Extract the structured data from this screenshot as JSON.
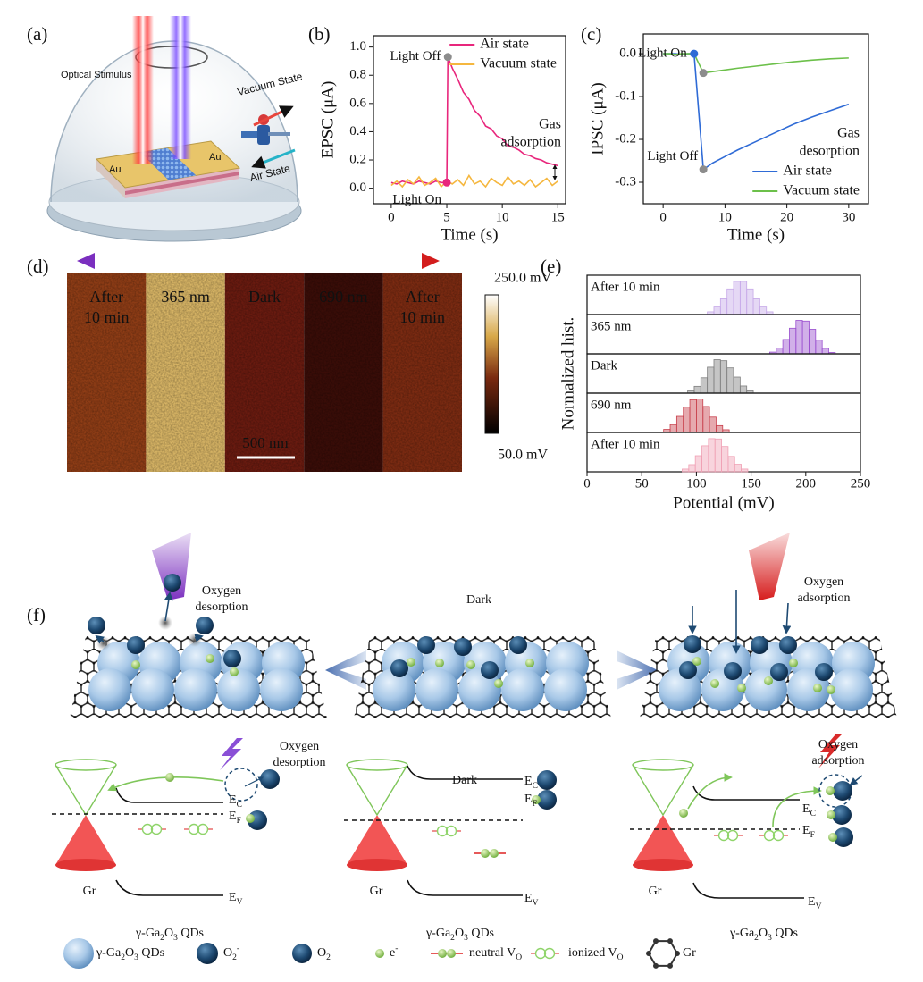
{
  "figure": {
    "panel_labels": [
      "(a)",
      "(b)",
      "(c)",
      "(d)",
      "(e)",
      "(f)"
    ],
    "a": {
      "optical_stimulus": "Optical Stimulus",
      "vacuum_state": "Vacuum State",
      "air_state": "Air State",
      "electrodes": [
        "Au",
        "Au"
      ]
    },
    "d": {
      "stripes": [
        [
          "After",
          "10 min"
        ],
        [
          "365 nm"
        ],
        [
          "Dark"
        ],
        [
          "690 nm"
        ],
        [
          "After",
          "10 min"
        ]
      ],
      "scale_bar": "500 nm",
      "colorbar_max": "250.0 mV",
      "colorbar_min": "50.0 mV"
    },
    "f": {
      "top": {
        "left": [
          "Oxygen",
          "desorption"
        ],
        "center": "Dark",
        "right": [
          "Oxygen",
          "adsorption"
        ]
      },
      "bands": [
        {
          "note": [
            "Oxygen",
            "desorption"
          ],
          "ec": [
            "E",
            {
              "sub": "C"
            }
          ],
          "ef": [
            "E",
            {
              "sub": "F"
            }
          ],
          "ev": [
            "E",
            {
              "sub": "V"
            }
          ],
          "gr": "Gr",
          "qds": [
            "γ-Ga",
            {
              "sub": "2"
            },
            "O",
            {
              "sub": "3"
            },
            " QDs"
          ]
        },
        {
          "note": [
            "Dark"
          ],
          "ec": [
            "E",
            {
              "sub": "C"
            }
          ],
          "ef": [
            "E",
            {
              "sub": "F"
            }
          ],
          "ev": [
            "E",
            {
              "sub": "V"
            }
          ],
          "gr": "Gr",
          "qds": [
            "γ-Ga",
            {
              "sub": "2"
            },
            "O",
            {
              "sub": "3"
            },
            " QDs"
          ]
        },
        {
          "note": [
            "Oxygen",
            "adsorption"
          ],
          "ec": [
            "E",
            {
              "sub": "C"
            }
          ],
          "ef": [
            "E",
            {
              "sub": "F"
            }
          ],
          "ev": [
            "E",
            {
              "sub": "V"
            }
          ],
          "gr": "Gr",
          "qds": [
            "γ-Ga",
            {
              "sub": "2"
            },
            "O",
            {
              "sub": "3"
            },
            " QDs"
          ]
        }
      ],
      "legend": [
        [
          "γ-Ga",
          {
            "sub": "2"
          },
          "O",
          {
            "sub": "3"
          },
          " QDs"
        ],
        [
          "O",
          {
            "sub": "2"
          },
          {
            "sup": "-"
          }
        ],
        [
          "O",
          {
            "sub": "2"
          }
        ],
        [
          "e",
          {
            "sup": "-"
          }
        ],
        [
          "neutral V",
          {
            "sub": "O"
          }
        ],
        [
          "ionized V",
          {
            "sub": "O"
          }
        ],
        [
          "Gr"
        ]
      ]
    }
  },
  "chart_data": [
    {
      "type": "line",
      "xlabel": "Time (s)",
      "ylabel": "EPSC (μA)",
      "xlim": [
        -1.6,
        15.7
      ],
      "ylim": [
        -0.11,
        1.08
      ],
      "xticks": [
        0,
        5,
        10,
        15
      ],
      "yticks": [
        {
          "value": 0,
          "label": "0.0"
        },
        0.2,
        0.4,
        0.6,
        0.8,
        {
          "value": 1,
          "label": "1.0"
        }
      ],
      "legend": "upper right",
      "series": [
        {
          "name": "Air state",
          "color": "#e8267c",
          "x": [
            0,
            0.5,
            1,
            1.5,
            2,
            2.5,
            3,
            3.5,
            4,
            4.5,
            5,
            5.1,
            5.5,
            6,
            6.5,
            7,
            7.5,
            8,
            8.5,
            9,
            9.5,
            10,
            10.5,
            11,
            11.5,
            12,
            12.5,
            13,
            13.5,
            14,
            14.5,
            15
          ],
          "values": [
            0.04,
            0.03,
            0.05,
            0.04,
            0.03,
            0.05,
            0.04,
            0.03,
            0.05,
            0.04,
            0.04,
            0.93,
            0.85,
            0.77,
            0.68,
            0.63,
            0.55,
            0.51,
            0.44,
            0.42,
            0.37,
            0.35,
            0.3,
            0.29,
            0.27,
            0.24,
            0.23,
            0.21,
            0.2,
            0.18,
            0.17,
            0.16
          ]
        },
        {
          "name": "Vacuum state",
          "color": "#f5b73f",
          "x": [
            0,
            0.5,
            1,
            1.5,
            2,
            2.5,
            3,
            3.5,
            4,
            4.5,
            5,
            5.5,
            6,
            6.5,
            7,
            7.5,
            8,
            8.5,
            9,
            9.5,
            10,
            10.5,
            11,
            11.5,
            12,
            12.5,
            13,
            13.5,
            14,
            14.5,
            15
          ],
          "values": [
            0.02,
            0.05,
            0.01,
            0.06,
            0.03,
            0.08,
            0.02,
            0.04,
            0.07,
            0.01,
            0.05,
            0.03,
            0.06,
            0.02,
            0.09,
            0.03,
            0.05,
            0.01,
            0.07,
            0.04,
            0.02,
            0.08,
            0.03,
            0.05,
            0.02,
            0.06,
            0.01,
            0.04,
            0.07,
            0.02,
            0.05
          ]
        }
      ],
      "markers": [
        {
          "label": "Light Off",
          "x": 5.1,
          "y": 0.93,
          "color": "#8c8c8c"
        },
        {
          "label": "Light On",
          "x": 5,
          "y": 0.04,
          "color": "#e8267c"
        }
      ],
      "annotation": {
        "lines": [
          "Gas",
          "adsorption"
        ],
        "color": "#e8267c"
      }
    },
    {
      "type": "line",
      "xlabel": "Time (s)",
      "ylabel": "IPSC (μA)",
      "xlim": [
        -3.2,
        33.2
      ],
      "ylim": [
        -0.35,
        0.046
      ],
      "xticks": [
        0,
        10,
        20,
        30
      ],
      "yticks": [
        {
          "value": 0,
          "label": "0.0"
        },
        -0.1,
        -0.2,
        -0.3
      ],
      "legend": "lower right",
      "series": [
        {
          "name": "Air state",
          "color": "#2f6bd6",
          "x": [
            0,
            1,
            2,
            3,
            4,
            5,
            6.5,
            8,
            10,
            12,
            15,
            18,
            21,
            24,
            27,
            30
          ],
          "values": [
            0,
            0,
            0,
            -0.002,
            0,
            0,
            -0.27,
            -0.255,
            -0.24,
            -0.225,
            -0.205,
            -0.185,
            -0.165,
            -0.148,
            -0.133,
            -0.118
          ]
        },
        {
          "name": "Vacuum state",
          "color": "#6cc04a",
          "x": [
            0,
            1,
            2,
            3,
            4,
            5,
            6.5,
            8,
            10,
            12,
            15,
            18,
            21,
            24,
            27,
            30
          ],
          "values": [
            0,
            0,
            -0.002,
            0,
            0,
            0,
            -0.045,
            -0.042,
            -0.038,
            -0.034,
            -0.029,
            -0.024,
            -0.019,
            -0.015,
            -0.012,
            -0.01
          ]
        }
      ],
      "markers": [
        {
          "label": "Light On",
          "x": 5,
          "y": 0,
          "color": "#2f6bd6"
        },
        {
          "x": 6.5,
          "y": -0.045,
          "color": "#8c8c8c"
        },
        {
          "label": "Light Off",
          "x": 6.5,
          "y": -0.27,
          "color": "#8c8c8c"
        }
      ],
      "annotation": {
        "lines": [
          "Gas",
          "desorption"
        ],
        "color": "#2f6bd6"
      }
    },
    {
      "type": "histogram",
      "xlabel": "Potential (mV)",
      "ylabel": "Normalized hist.",
      "xlim": [
        0,
        250
      ],
      "ylim": [
        0,
        1.15
      ],
      "xticks": [
        0,
        50,
        100,
        150,
        200,
        250
      ],
      "panels": [
        {
          "name": "After 10 min",
          "color": "#c6a8e8",
          "bins": [
            110,
            116,
            122,
            128,
            134,
            140,
            146,
            152,
            158,
            164,
            170
          ],
          "values": [
            0.08,
            0.22,
            0.46,
            0.75,
            0.97,
            0.97,
            0.75,
            0.46,
            0.22,
            0.08
          ]
        },
        {
          "name": "365 nm",
          "color": "#9a4fcf",
          "bins": [
            167,
            173,
            179,
            185,
            191,
            197,
            203,
            209,
            215,
            221,
            227
          ],
          "values": [
            0.05,
            0.17,
            0.42,
            0.75,
            0.98,
            0.96,
            0.72,
            0.4,
            0.16,
            0.04
          ]
        },
        {
          "name": "Dark",
          "color": "#7f7f7f",
          "bins": [
            92,
            98,
            104,
            110,
            116,
            122,
            128,
            134,
            140,
            146,
            152
          ],
          "values": [
            0.07,
            0.2,
            0.45,
            0.76,
            0.98,
            0.95,
            0.74,
            0.47,
            0.21,
            0.07
          ]
        },
        {
          "name": "690 nm",
          "color": "#c8404c",
          "bins": [
            70,
            76,
            82,
            88,
            94,
            100,
            106,
            112,
            118,
            124,
            130
          ],
          "values": [
            0.09,
            0.23,
            0.47,
            0.74,
            0.96,
            0.98,
            0.76,
            0.45,
            0.2,
            0.08
          ]
        },
        {
          "name": "After 10 min",
          "color": "#f0a0b4",
          "bins": [
            87,
            93,
            99,
            105,
            111,
            117,
            123,
            129,
            135,
            141,
            147
          ],
          "values": [
            0.08,
            0.21,
            0.47,
            0.76,
            0.97,
            0.96,
            0.74,
            0.45,
            0.22,
            0.08
          ]
        }
      ]
    }
  ]
}
